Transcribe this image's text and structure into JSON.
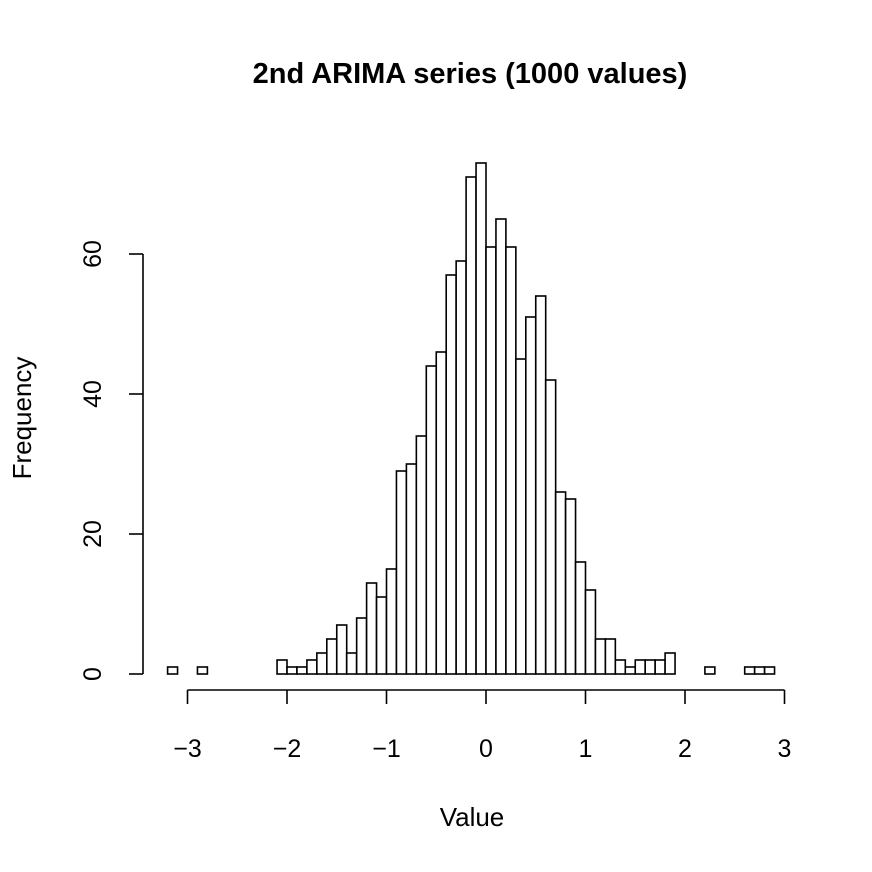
{
  "chart_data": {
    "type": "histogram",
    "title": "2nd ARIMA series (1000 values)",
    "xlabel": "Value",
    "ylabel": "Frequency",
    "xticks": [
      -3,
      -2,
      -1,
      0,
      1,
      2,
      3
    ],
    "xtick_labels": [
      "−3",
      "−2",
      "−1",
      "0",
      "1",
      "2",
      "3"
    ],
    "yticks": [
      0,
      20,
      40,
      60
    ],
    "ytick_labels": [
      "0",
      "20",
      "40",
      "60"
    ],
    "xlim": [
      -3.2,
      2.9
    ],
    "ylim": [
      0,
      73
    ],
    "grid": false,
    "bin_width": 0.1,
    "bins": [
      {
        "x0": -3.2,
        "count": 1
      },
      {
        "x0": -3.1,
        "count": 0
      },
      {
        "x0": -3.0,
        "count": 0
      },
      {
        "x0": -2.9,
        "count": 1
      },
      {
        "x0": -2.8,
        "count": 0
      },
      {
        "x0": -2.7,
        "count": 0
      },
      {
        "x0": -2.6,
        "count": 0
      },
      {
        "x0": -2.5,
        "count": 0
      },
      {
        "x0": -2.4,
        "count": 0
      },
      {
        "x0": -2.3,
        "count": 0
      },
      {
        "x0": -2.2,
        "count": 0
      },
      {
        "x0": -2.1,
        "count": 2
      },
      {
        "x0": -2.0,
        "count": 1
      },
      {
        "x0": -1.9,
        "count": 1
      },
      {
        "x0": -1.8,
        "count": 2
      },
      {
        "x0": -1.7,
        "count": 3
      },
      {
        "x0": -1.6,
        "count": 5
      },
      {
        "x0": -1.5,
        "count": 7
      },
      {
        "x0": -1.4,
        "count": 3
      },
      {
        "x0": -1.3,
        "count": 8
      },
      {
        "x0": -1.2,
        "count": 13
      },
      {
        "x0": -1.1,
        "count": 11
      },
      {
        "x0": -1.0,
        "count": 15
      },
      {
        "x0": -0.9,
        "count": 29
      },
      {
        "x0": -0.8,
        "count": 30
      },
      {
        "x0": -0.7,
        "count": 34
      },
      {
        "x0": -0.6,
        "count": 44
      },
      {
        "x0": -0.5,
        "count": 46
      },
      {
        "x0": -0.4,
        "count": 57
      },
      {
        "x0": -0.3,
        "count": 59
      },
      {
        "x0": -0.2,
        "count": 71
      },
      {
        "x0": -0.1,
        "count": 73
      },
      {
        "x0": 0.0,
        "count": 61
      },
      {
        "x0": 0.1,
        "count": 65
      },
      {
        "x0": 0.2,
        "count": 61
      },
      {
        "x0": 0.3,
        "count": 45
      },
      {
        "x0": 0.4,
        "count": 51
      },
      {
        "x0": 0.5,
        "count": 54
      },
      {
        "x0": 0.6,
        "count": 42
      },
      {
        "x0": 0.7,
        "count": 26
      },
      {
        "x0": 0.8,
        "count": 25
      },
      {
        "x0": 0.9,
        "count": 16
      },
      {
        "x0": 1.0,
        "count": 12
      },
      {
        "x0": 1.1,
        "count": 5
      },
      {
        "x0": 1.2,
        "count": 5
      },
      {
        "x0": 1.3,
        "count": 2
      },
      {
        "x0": 1.4,
        "count": 1
      },
      {
        "x0": 1.5,
        "count": 2
      },
      {
        "x0": 1.6,
        "count": 2
      },
      {
        "x0": 1.7,
        "count": 2
      },
      {
        "x0": 1.8,
        "count": 3
      },
      {
        "x0": 1.9,
        "count": 0
      },
      {
        "x0": 2.0,
        "count": 0
      },
      {
        "x0": 2.1,
        "count": 0
      },
      {
        "x0": 2.2,
        "count": 1
      },
      {
        "x0": 2.3,
        "count": 0
      },
      {
        "x0": 2.4,
        "count": 0
      },
      {
        "x0": 2.5,
        "count": 0
      },
      {
        "x0": 2.6,
        "count": 1
      },
      {
        "x0": 2.7,
        "count": 1
      },
      {
        "x0": 2.8,
        "count": 1
      }
    ]
  }
}
